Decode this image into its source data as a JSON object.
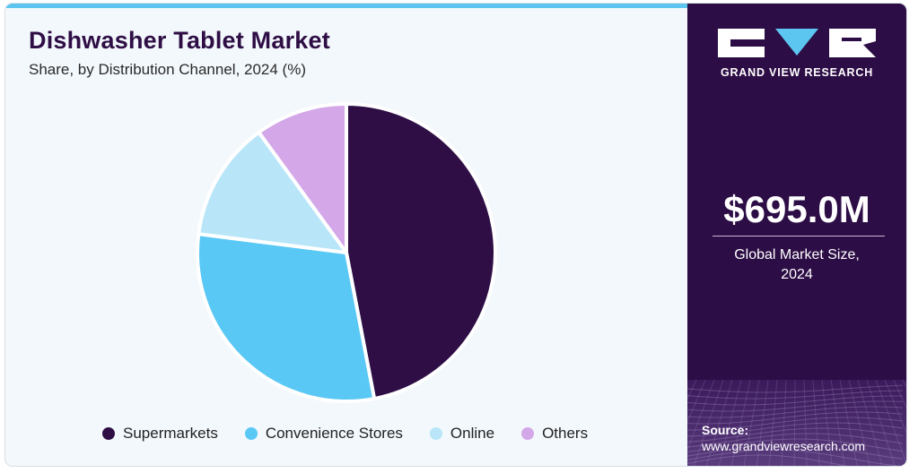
{
  "title": "Dishwasher Tablet Market",
  "subtitle": "Share, by Distribution Channel, 2024 (%)",
  "chart_data": {
    "type": "pie",
    "categories": [
      "Supermarkets",
      "Convenience Stores",
      "Online",
      "Others"
    ],
    "values": [
      47,
      30,
      13,
      10
    ],
    "colors": [
      "#2e0e45",
      "#5ac8f5",
      "#b8e6f8",
      "#d3a7e8"
    ],
    "legend_position": "bottom"
  },
  "brand": {
    "name": "GRAND VIEW RESEARCH",
    "logo_icon": "gvr-logo-icon"
  },
  "market": {
    "value": "$695.0M",
    "label_line1": "Global Market Size,",
    "label_line2": "2024"
  },
  "source": {
    "label": "Source:",
    "url": "www.grandviewresearch.com"
  }
}
